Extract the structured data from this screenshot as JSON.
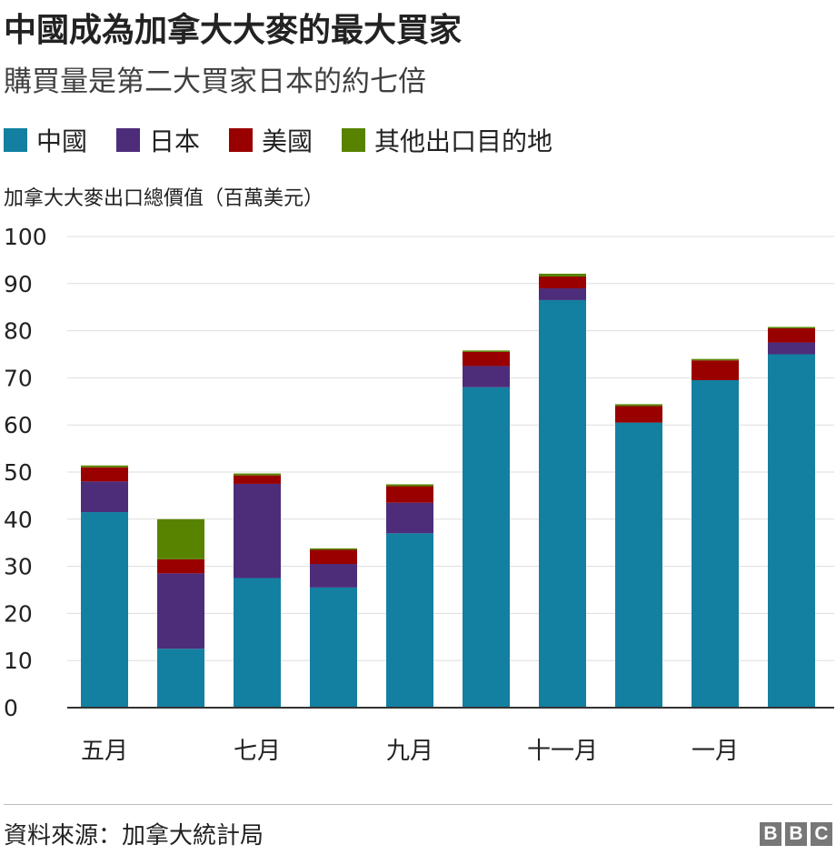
{
  "title": "中國成為加拿大大麥的最大買家",
  "subtitle": "購買量是第二大買家日本的約七倍",
  "source": "資料來源：加拿大統計局",
  "logo": [
    "B",
    "B",
    "C"
  ],
  "colors": {
    "china": "#1380a1",
    "japan": "#4d2d7a",
    "usa": "#990000",
    "other": "#588300",
    "axis": "#333333",
    "grid": "#dddddd"
  },
  "chart_data": {
    "type": "bar",
    "stacked": true,
    "title": "中國成為加拿大大麥的最大買家",
    "subtitle": "購買量是第二大買家日本的約七倍",
    "ylabel": "加拿大大麥出口總價值（百萬美元）",
    "xlabel": "",
    "ylim": [
      0,
      100
    ],
    "yticks": [
      0,
      10,
      20,
      30,
      40,
      50,
      60,
      70,
      80,
      90,
      100
    ],
    "grid": true,
    "legend_position": "top-left",
    "categories": [
      "五月",
      "",
      "七月",
      "",
      "九月",
      "",
      "十一月",
      "",
      "一月",
      ""
    ],
    "series": [
      {
        "name": "中國",
        "color": "#1380a1",
        "values": [
          41.5,
          12.5,
          27.5,
          25.5,
          37,
          68,
          86.5,
          60.5,
          69.5,
          75
        ]
      },
      {
        "name": "日本",
        "color": "#4d2d7a",
        "values": [
          6.5,
          16,
          20,
          5,
          6.5,
          4.5,
          2.5,
          0,
          0,
          2.5
        ]
      },
      {
        "name": "美國",
        "color": "#990000",
        "values": [
          3,
          3,
          1.8,
          3,
          3.5,
          3,
          2.5,
          3.5,
          4.2,
          3
        ]
      },
      {
        "name": "其他出口目的地",
        "color": "#588300",
        "values": [
          0.4,
          8.5,
          0.4,
          0.3,
          0.4,
          0.3,
          0.6,
          0.4,
          0.3,
          0.3
        ]
      }
    ]
  }
}
